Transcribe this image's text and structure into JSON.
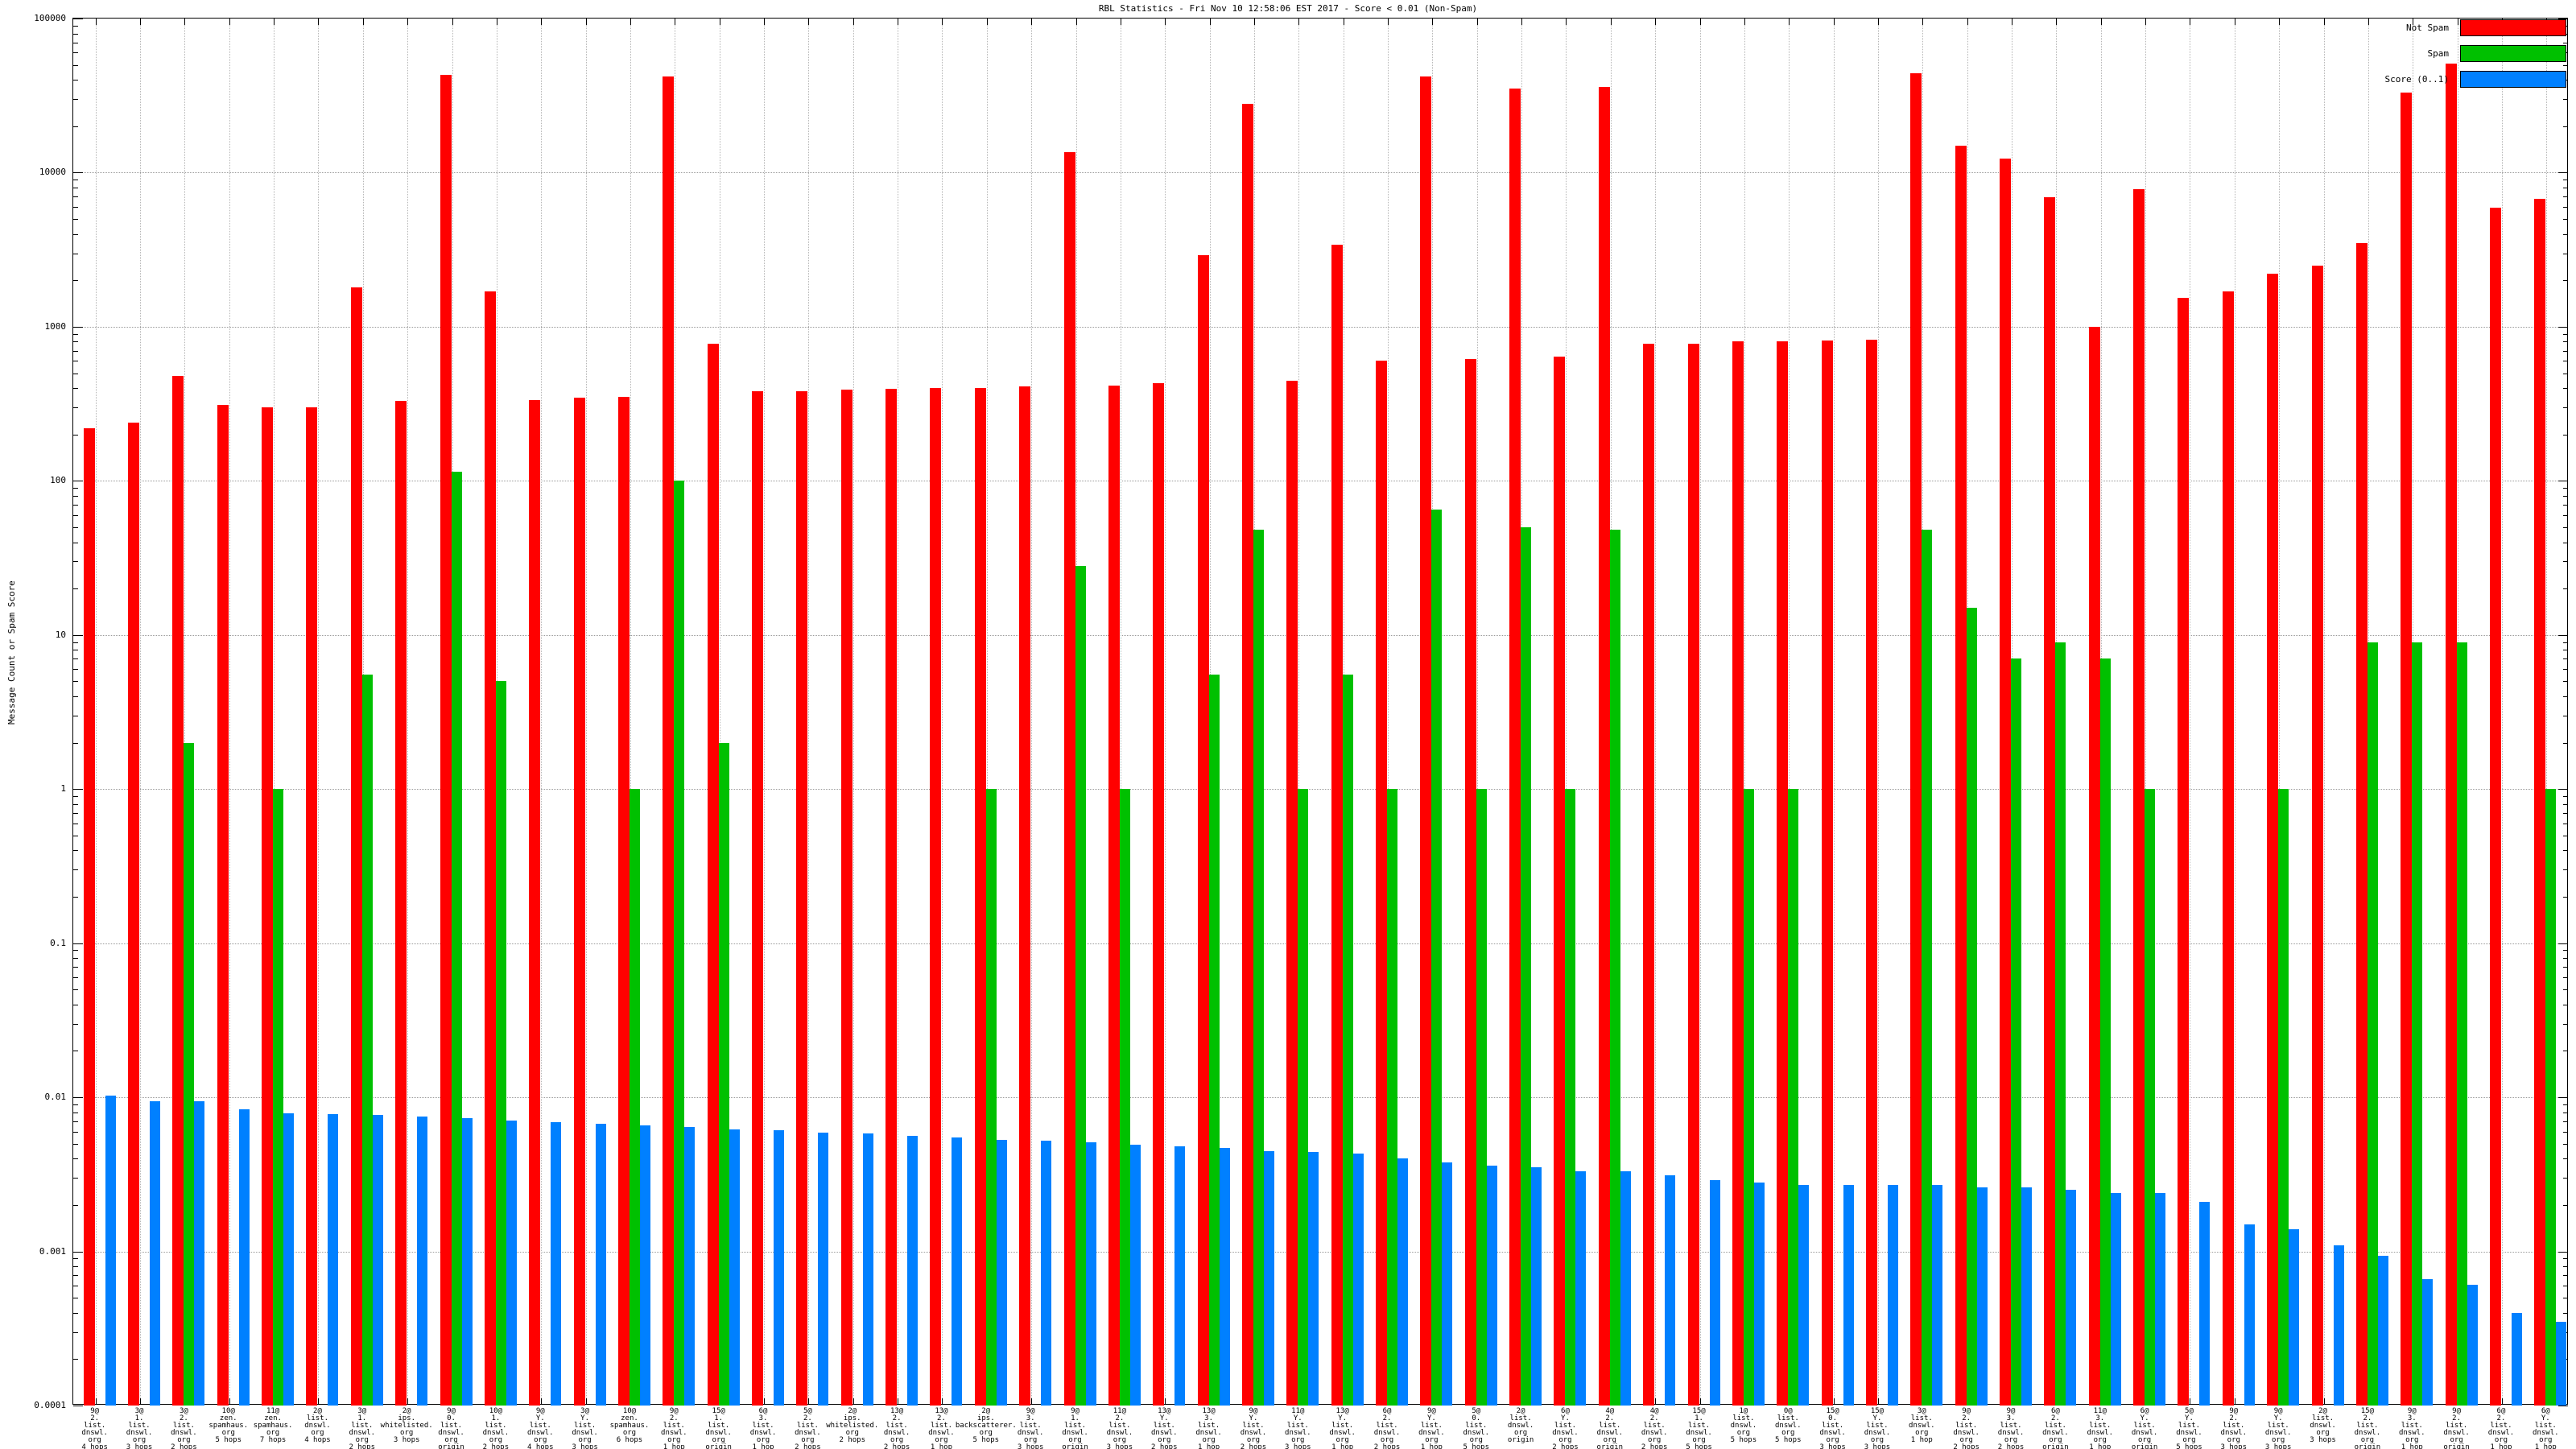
{
  "title": "RBL Statistics - Fri Nov 10 12:58:06 EST 2017 - Score < 0.01 (Non-Spam)",
  "y_axis": {
    "label": "Message Count or Spam Score",
    "tick_labels": [
      "100000",
      "10000",
      "1000",
      "100",
      "10",
      "1",
      "0.1",
      "0.01",
      "0.001",
      "0.0001"
    ]
  },
  "legend": [
    {
      "label": "Not Spam",
      "color": "#ff0000"
    },
    {
      "label": "Spam",
      "color": "#00c000"
    },
    {
      "label": "Score (0..1)",
      "color": "#0080ff"
    }
  ],
  "chart_data": {
    "type": "bar",
    "scale_y": "log",
    "ylim": [
      0.0001,
      100000
    ],
    "grid": true,
    "legend_position": "top-right",
    "title": "RBL Statistics - Fri Nov 10 12:58:06 EST 2017 - Score < 0.01 (Non-Spam)",
    "ylabel": "Message Count or Spam Score",
    "series_names": [
      "Not Spam",
      "Spam",
      "Score (0..1)"
    ],
    "series_colors": [
      "#ff0000",
      "#00c000",
      "#0080ff"
    ],
    "groups": [
      {
        "label_lines": [
          "9@",
          "2.",
          "list.",
          "dnswl.",
          "org",
          "4 hops"
        ],
        "not_spam": 220,
        "spam": 0,
        "score": 0.0102
      },
      {
        "label_lines": [
          "3@",
          "1.",
          "list.",
          "dnswl.",
          "org",
          "3 hops"
        ],
        "not_spam": 240,
        "spam": 0,
        "score": 0.0094
      },
      {
        "label_lines": [
          "3@",
          "2.",
          "list.",
          "dnswl.",
          "org",
          "2 hops"
        ],
        "not_spam": 480,
        "spam": 2,
        "score": 0.0094
      },
      {
        "label_lines": [
          "10@",
          "zen.",
          "spamhaus.",
          "org",
          "5 hops"
        ],
        "not_spam": 310,
        "spam": 0,
        "score": 0.0084
      },
      {
        "label_lines": [
          "11@",
          "zen.",
          "spamhaus.",
          "org",
          "7 hops"
        ],
        "not_spam": 300,
        "spam": 1,
        "score": 0.0079
      },
      {
        "label_lines": [
          "2@",
          "list.",
          "dnswl.",
          "org",
          "4 hops"
        ],
        "not_spam": 300,
        "spam": 0,
        "score": 0.0078
      },
      {
        "label_lines": [
          "3@",
          "1.",
          "list.",
          "dnswl.",
          "org",
          "2 hops"
        ],
        "not_spam": 1800,
        "spam": 5.5,
        "score": 0.0077
      },
      {
        "label_lines": [
          "2@",
          "ips.",
          "whitelisted.",
          "org",
          "3 hops"
        ],
        "not_spam": 330,
        "spam": 0,
        "score": 0.0075
      },
      {
        "label_lines": [
          "9@",
          "0.",
          "list.",
          "dnswl.",
          "org",
          "origin"
        ],
        "not_spam": 43000,
        "spam": 115,
        "score": 0.0073
      },
      {
        "label_lines": [
          "10@",
          "1.",
          "list.",
          "dnswl.",
          "org",
          "2 hops"
        ],
        "not_spam": 1700,
        "spam": 5,
        "score": 0.0071
      },
      {
        "label_lines": [
          "9@",
          "Y.",
          "list.",
          "dnswl.",
          "org",
          "4 hops"
        ],
        "not_spam": 335,
        "spam": 0,
        "score": 0.0069
      },
      {
        "label_lines": [
          "3@",
          "Y.",
          "list.",
          "dnswl.",
          "org",
          "3 hops"
        ],
        "not_spam": 345,
        "spam": 0,
        "score": 0.0067
      },
      {
        "label_lines": [
          "10@",
          "zen.",
          "spamhaus.",
          "org",
          "6 hops"
        ],
        "not_spam": 350,
        "spam": 1,
        "score": 0.0066
      },
      {
        "label_lines": [
          "9@",
          "2.",
          "list.",
          "dnswl.",
          "org",
          "1 hop"
        ],
        "not_spam": 42000,
        "spam": 100,
        "score": 0.0064
      },
      {
        "label_lines": [
          "15@",
          "1.",
          "list.",
          "dnswl.",
          "org",
          "origin"
        ],
        "not_spam": 780,
        "spam": 2,
        "score": 0.0062
      },
      {
        "label_lines": [
          "6@",
          "3.",
          "list.",
          "dnswl.",
          "org",
          "1 hop"
        ],
        "not_spam": 380,
        "spam": 0,
        "score": 0.0061
      },
      {
        "label_lines": [
          "5@",
          "2.",
          "list.",
          "dnswl.",
          "org",
          "2 hops"
        ],
        "not_spam": 380,
        "spam": 0,
        "score": 0.0059
      },
      {
        "label_lines": [
          "2@",
          "ips.",
          "whitelisted.",
          "org",
          "2 hops"
        ],
        "not_spam": 390,
        "spam": 0,
        "score": 0.0058
      },
      {
        "label_lines": [
          "13@",
          "2.",
          "list.",
          "dnswl.",
          "org",
          "2 hops"
        ],
        "not_spam": 395,
        "spam": 0,
        "score": 0.0056
      },
      {
        "label_lines": [
          "13@",
          "2.",
          "list.",
          "dnswl.",
          "org",
          "1 hop"
        ],
        "not_spam": 400,
        "spam": 0,
        "score": 0.0055
      },
      {
        "label_lines": [
          "2@",
          "ips.",
          "backscatterer.",
          "org",
          "5 hops"
        ],
        "not_spam": 400,
        "spam": 1,
        "score": 0.0053
      },
      {
        "label_lines": [
          "9@",
          "3.",
          "list.",
          "dnswl.",
          "org",
          "3 hops"
        ],
        "not_spam": 410,
        "spam": 0,
        "score": 0.0052
      },
      {
        "label_lines": [
          "9@",
          "1.",
          "list.",
          "dnswl.",
          "org",
          "origin"
        ],
        "not_spam": 13500,
        "spam": 28,
        "score": 0.0051
      },
      {
        "label_lines": [
          "11@",
          "2.",
          "list.",
          "dnswl.",
          "org",
          "3 hops"
        ],
        "not_spam": 415,
        "spam": 1,
        "score": 0.0049
      },
      {
        "label_lines": [
          "13@",
          "Y.",
          "list.",
          "dnswl.",
          "org",
          "2 hops"
        ],
        "not_spam": 430,
        "spam": 0,
        "score": 0.0048
      },
      {
        "label_lines": [
          "13@",
          "3.",
          "list.",
          "dnswl.",
          "org",
          "1 hop"
        ],
        "not_spam": 2900,
        "spam": 5.5,
        "score": 0.0047
      },
      {
        "label_lines": [
          "9@",
          "Y.",
          "list.",
          "dnswl.",
          "org",
          "2 hops"
        ],
        "not_spam": 28000,
        "spam": 48,
        "score": 0.0045
      },
      {
        "label_lines": [
          "11@",
          "Y.",
          "list.",
          "dnswl.",
          "org",
          "3 hops"
        ],
        "not_spam": 445,
        "spam": 1,
        "score": 0.0044
      },
      {
        "label_lines": [
          "13@",
          "Y.",
          "list.",
          "dnswl.",
          "org",
          "1 hop"
        ],
        "not_spam": 3400,
        "spam": 5.5,
        "score": 0.0043
      },
      {
        "label_lines": [
          "6@",
          "2.",
          "list.",
          "dnswl.",
          "org",
          "2 hops"
        ],
        "not_spam": 600,
        "spam": 1,
        "score": 0.004
      },
      {
        "label_lines": [
          "9@",
          "Y.",
          "list.",
          "dnswl.",
          "org",
          "1 hop"
        ],
        "not_spam": 42000,
        "spam": 65,
        "score": 0.0038
      },
      {
        "label_lines": [
          "5@",
          "0.",
          "list.",
          "dnswl.",
          "org",
          "5 hops"
        ],
        "not_spam": 620,
        "spam": 1,
        "score": 0.0036
      },
      {
        "label_lines": [
          "2@",
          "list.",
          "dnswl.",
          "org",
          "origin"
        ],
        "not_spam": 35000,
        "spam": 50,
        "score": 0.0035
      },
      {
        "label_lines": [
          "6@",
          "Y.",
          "list.",
          "dnswl.",
          "org",
          "2 hops"
        ],
        "not_spam": 640,
        "spam": 1,
        "score": 0.0033
      },
      {
        "label_lines": [
          "4@",
          "2.",
          "list.",
          "dnswl.",
          "org",
          "origin"
        ],
        "not_spam": 36000,
        "spam": 48,
        "score": 0.0033
      },
      {
        "label_lines": [
          "4@",
          "2.",
          "list.",
          "dnswl.",
          "org",
          "2 hops"
        ],
        "not_spam": 780,
        "spam": 0,
        "score": 0.0031
      },
      {
        "label_lines": [
          "15@",
          "1.",
          "list.",
          "dnswl.",
          "org",
          "5 hops"
        ],
        "not_spam": 780,
        "spam": 0,
        "score": 0.0029
      },
      {
        "label_lines": [
          "1@",
          "list.",
          "dnswl.",
          "org",
          "5 hops"
        ],
        "not_spam": 800,
        "spam": 1,
        "score": 0.0028
      },
      {
        "label_lines": [
          "0@",
          "list.",
          "dnswl.",
          "org",
          "5 hops"
        ],
        "not_spam": 800,
        "spam": 1,
        "score": 0.0027
      },
      {
        "label_lines": [
          "15@",
          "0.",
          "list.",
          "dnswl.",
          "org",
          "3 hops"
        ],
        "not_spam": 810,
        "spam": 0,
        "score": 0.0027
      },
      {
        "label_lines": [
          "15@",
          "Y.",
          "list.",
          "dnswl.",
          "org",
          "3 hops"
        ],
        "not_spam": 820,
        "spam": 0,
        "score": 0.0027
      },
      {
        "label_lines": [
          "3@",
          "list.",
          "dnswl.",
          "org",
          "1 hop"
        ],
        "not_spam": 44000,
        "spam": 48,
        "score": 0.0027
      },
      {
        "label_lines": [
          "9@",
          "2.",
          "list.",
          "dnswl.",
          "org",
          "2 hops"
        ],
        "not_spam": 15000,
        "spam": 15,
        "score": 0.0026
      },
      {
        "label_lines": [
          "9@",
          "3.",
          "list.",
          "dnswl.",
          "org",
          "2 hops"
        ],
        "not_spam": 12300,
        "spam": 7,
        "score": 0.0026
      },
      {
        "label_lines": [
          "6@",
          "2.",
          "list.",
          "dnswl.",
          "org",
          "origin"
        ],
        "not_spam": 6900,
        "spam": 9,
        "score": 0.0025
      },
      {
        "label_lines": [
          "11@",
          "3.",
          "list.",
          "dnswl.",
          "org",
          "1 hop"
        ],
        "not_spam": 1000,
        "spam": 7,
        "score": 0.0024
      },
      {
        "label_lines": [
          "6@",
          "Y.",
          "list.",
          "dnswl.",
          "org",
          "origin"
        ],
        "not_spam": 7800,
        "spam": 1,
        "score": 0.0024
      },
      {
        "label_lines": [
          "5@",
          "Y.",
          "list.",
          "dnswl.",
          "org",
          "5 hops"
        ],
        "not_spam": 1540,
        "spam": 0,
        "score": 0.0021
      },
      {
        "label_lines": [
          "9@",
          "2.",
          "list.",
          "dnswl.",
          "org",
          "3 hops"
        ],
        "not_spam": 1700,
        "spam": 0,
        "score": 0.0015
      },
      {
        "label_lines": [
          "9@",
          "Y.",
          "list.",
          "dnswl.",
          "org",
          "3 hops"
        ],
        "not_spam": 2200,
        "spam": 1,
        "score": 0.0014
      },
      {
        "label_lines": [
          "2@",
          "list.",
          "dnswl.",
          "org",
          "3 hops"
        ],
        "not_spam": 2500,
        "spam": 0,
        "score": 0.0011
      },
      {
        "label_lines": [
          "15@",
          "2.",
          "list.",
          "dnswl.",
          "org",
          "origin"
        ],
        "not_spam": 3500,
        "spam": 9,
        "score": 0.00094
      },
      {
        "label_lines": [
          "9@",
          "3.",
          "list.",
          "dnswl.",
          "org",
          "1 hop"
        ],
        "not_spam": 33000,
        "spam": 9,
        "score": 0.00066
      },
      {
        "label_lines": [
          "9@",
          "2.",
          "list.",
          "dnswl.",
          "org",
          "origin"
        ],
        "not_spam": 51000,
        "spam": 9,
        "score": 0.00061
      },
      {
        "label_lines": [
          "6@",
          "2.",
          "list.",
          "dnswl.",
          "org",
          "1 hop"
        ],
        "not_spam": 5900,
        "spam": 0,
        "score": 0.0004
      },
      {
        "label_lines": [
          "6@",
          "Y.",
          "list.",
          "dnswl.",
          "org",
          "1 hop"
        ],
        "not_spam": 6800,
        "spam": 1,
        "score": 0.00035
      }
    ]
  }
}
